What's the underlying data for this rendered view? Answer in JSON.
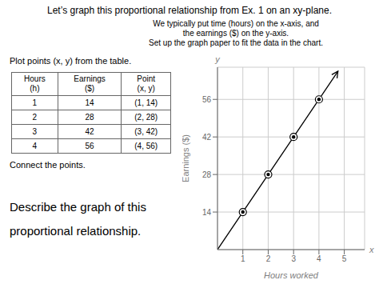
{
  "chart_data": {
    "type": "scatter",
    "title": "Let’s graph this proportional relationship from Ex. 1 on an xy-plane.",
    "subtitle": [
      "We typically put time (hours) on the x-axis, and",
      "the earnings ($) on the y-axis.",
      "Set up the graph paper to fit the data in the chart."
    ],
    "annotations": [
      "Plot points (x, y) from the table.",
      "Connect the points.",
      "Describe the graph of this",
      "proportional relationship."
    ],
    "table": {
      "headers": [
        "Hours\n(h)",
        "Earnings\n($)",
        "Point\n(x, y)"
      ],
      "rows": [
        [
          "1",
          "14",
          "(1, 14)"
        ],
        [
          "2",
          "28",
          "(2, 28)"
        ],
        [
          "3",
          "42",
          "(3, 42)"
        ],
        [
          "4",
          "56",
          "(4, 56)"
        ]
      ]
    },
    "xlabel": "Hours worked",
    "ylabel": "Earnings ($)",
    "axis_names": [
      "x",
      "y"
    ],
    "series": [
      {
        "type": "scatter",
        "color": "#000000",
        "marker": "circle",
        "x": [
          1,
          2,
          3,
          4
        ],
        "values": [
          14,
          28,
          42,
          56
        ]
      },
      {
        "type": "line",
        "color": "#000000",
        "line_style": "solid",
        "marker": "arrow",
        "x": [
          0,
          4.6,
          4.75
        ],
        "values": [
          0,
          64.4,
          66.5
        ]
      }
    ],
    "xlim": [
      0,
      5.8
    ],
    "xticks": [
      1,
      2,
      3,
      4,
      5
    ],
    "ylim": [
      0,
      68
    ],
    "yticks": [
      14,
      28,
      42,
      56
    ],
    "grid": true
  }
}
